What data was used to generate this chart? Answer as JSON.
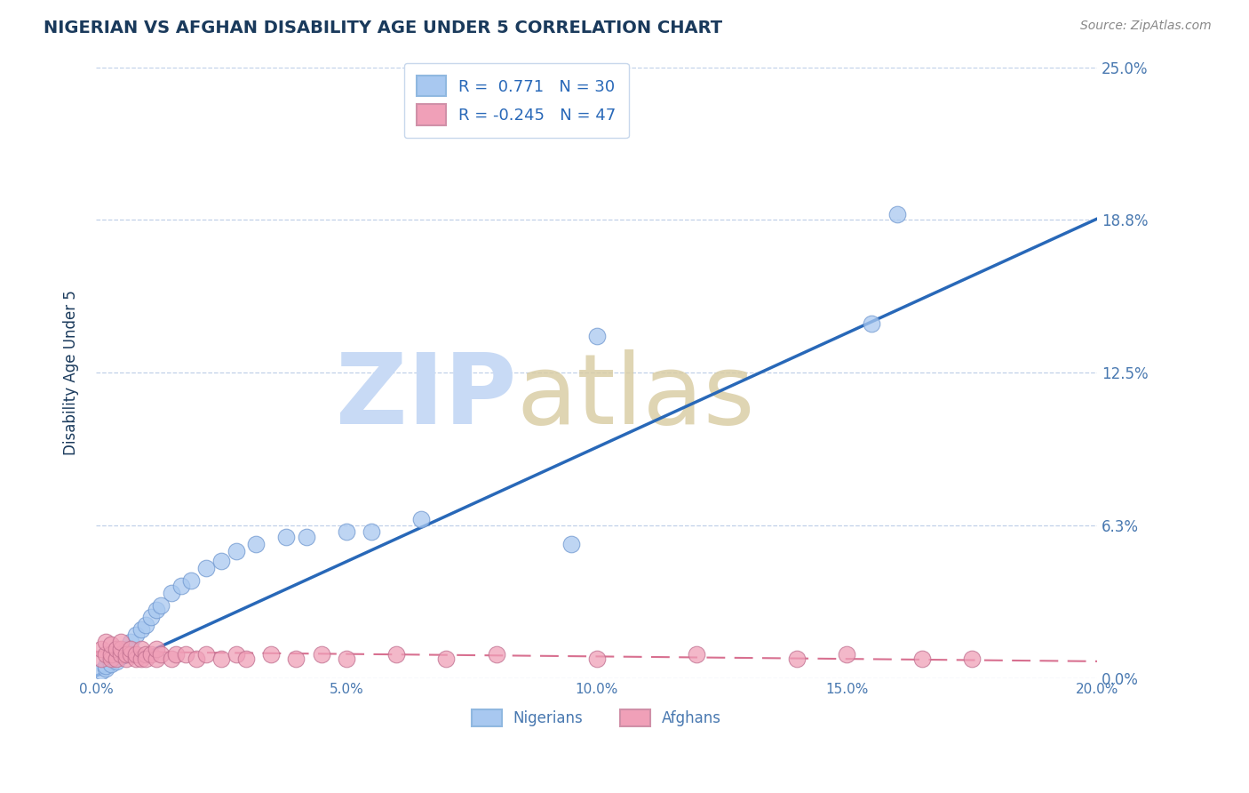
{
  "title": "NIGERIAN VS AFGHAN DISABILITY AGE UNDER 5 CORRELATION CHART",
  "source": "Source: ZipAtlas.com",
  "ylabel": "Disability Age Under 5",
  "xlim": [
    0.0,
    0.2
  ],
  "ylim": [
    0.0,
    0.25
  ],
  "yticks": [
    0.0,
    0.0625,
    0.125,
    0.1875,
    0.25
  ],
  "ytick_labels": [
    "0.0%",
    "6.3%",
    "12.5%",
    "18.8%",
    "25.0%"
  ],
  "xticks": [
    0.0,
    0.05,
    0.1,
    0.15,
    0.2
  ],
  "xtick_labels": [
    "0.0%",
    "5.0%",
    "10.0%",
    "15.0%",
    "20.0%"
  ],
  "nigerian_R": 0.771,
  "nigerian_N": 30,
  "afghan_R": -0.245,
  "afghan_N": 47,
  "nigerian_color": "#a8c8f0",
  "afghan_color": "#f0a0b8",
  "nigerian_line_color": "#2868b8",
  "afghan_line_color": "#d87090",
  "title_color": "#1a3a5c",
  "axis_color": "#4878b0",
  "source_color": "#888888",
  "background_color": "#ffffff",
  "grid_color": "#c0d0e8",
  "legend_label_color": "#1a3a5c",
  "legend_value_color": "#2868b8",
  "nigerian_x": [
    0.001,
    0.002,
    0.002,
    0.003,
    0.004,
    0.005,
    0.006,
    0.007,
    0.008,
    0.009,
    0.01,
    0.011,
    0.012,
    0.013,
    0.015,
    0.017,
    0.019,
    0.022,
    0.025,
    0.028,
    0.032,
    0.038,
    0.042,
    0.05,
    0.055,
    0.065,
    0.095,
    0.1,
    0.155,
    0.16
  ],
  "nigerian_y": [
    0.003,
    0.004,
    0.005,
    0.006,
    0.007,
    0.01,
    0.012,
    0.015,
    0.018,
    0.02,
    0.022,
    0.025,
    0.028,
    0.03,
    0.035,
    0.038,
    0.04,
    0.045,
    0.048,
    0.052,
    0.055,
    0.058,
    0.058,
    0.06,
    0.06,
    0.065,
    0.055,
    0.14,
    0.145,
    0.19
  ],
  "afghan_x": [
    0.001,
    0.001,
    0.002,
    0.002,
    0.003,
    0.003,
    0.003,
    0.004,
    0.004,
    0.005,
    0.005,
    0.005,
    0.006,
    0.006,
    0.007,
    0.007,
    0.008,
    0.008,
    0.009,
    0.009,
    0.01,
    0.01,
    0.011,
    0.012,
    0.012,
    0.013,
    0.015,
    0.016,
    0.018,
    0.02,
    0.022,
    0.025,
    0.028,
    0.03,
    0.035,
    0.04,
    0.045,
    0.05,
    0.06,
    0.07,
    0.08,
    0.1,
    0.12,
    0.14,
    0.15,
    0.165,
    0.175
  ],
  "afghan_y": [
    0.008,
    0.012,
    0.01,
    0.015,
    0.008,
    0.01,
    0.014,
    0.008,
    0.012,
    0.01,
    0.012,
    0.015,
    0.008,
    0.01,
    0.01,
    0.012,
    0.008,
    0.01,
    0.008,
    0.012,
    0.01,
    0.008,
    0.01,
    0.008,
    0.012,
    0.01,
    0.008,
    0.01,
    0.01,
    0.008,
    0.01,
    0.008,
    0.01,
    0.008,
    0.01,
    0.008,
    0.01,
    0.008,
    0.01,
    0.008,
    0.01,
    0.008,
    0.01,
    0.008,
    0.01,
    0.008,
    0.008
  ],
  "nig_line_x0": 0.0,
  "nig_line_y0": 0.001,
  "nig_line_x1": 0.2,
  "nig_line_y1": 0.188,
  "afg_line_x0": 0.0,
  "afg_line_y0": 0.011,
  "afg_line_x1": 0.2,
  "afg_line_y1": 0.007
}
